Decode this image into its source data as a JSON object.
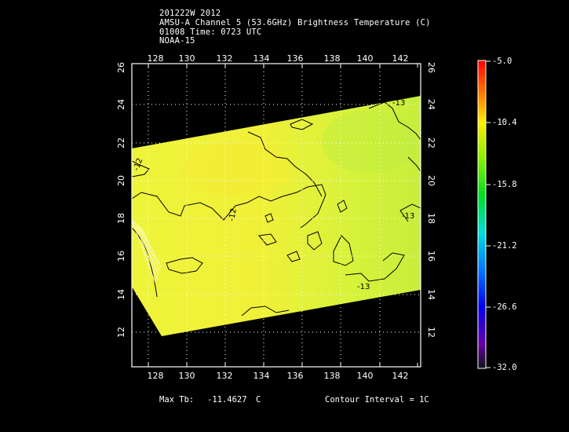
{
  "header": {
    "line1": "201222W 2012",
    "line2": "AMSU-A Channel 5 (53.6GHz) Brightness Temperature (C)",
    "line3": "01008 Time: 0723 UTC",
    "line4": "NOAA-15"
  },
  "map": {
    "lon_ticks": [
      "128",
      "130",
      "132",
      "134",
      "136",
      "138",
      "140",
      "142"
    ],
    "lat_ticks": [
      "12",
      "14",
      "16",
      "18",
      "20",
      "22",
      "24",
      "26"
    ],
    "contour_labels": [
      "-13",
      "-12",
      "-12",
      "-13",
      "-13"
    ],
    "colors": {
      "swath": "#e6f53a",
      "swath_warm": "#f2ee35",
      "swath_cool": "#c8f03a",
      "contour": "#000000",
      "frame": "#ffffff"
    }
  },
  "colorbar": {
    "labels": [
      "-5.0",
      "-10.4",
      "-15.8",
      "-21.2",
      "-26.6",
      "-32.0"
    ],
    "colors": [
      "#ff0000",
      "#ff8800",
      "#ffee00",
      "#88ee00",
      "#00dd22",
      "#00dddd",
      "#0077ff",
      "#0000ee",
      "#6600aa",
      "#220022"
    ]
  },
  "footer": {
    "max_tb_label": "Max Tb:",
    "max_tb_value": "-11.4627",
    "max_tb_unit": "C",
    "contour_interval": "Contour Interval = 1C"
  }
}
